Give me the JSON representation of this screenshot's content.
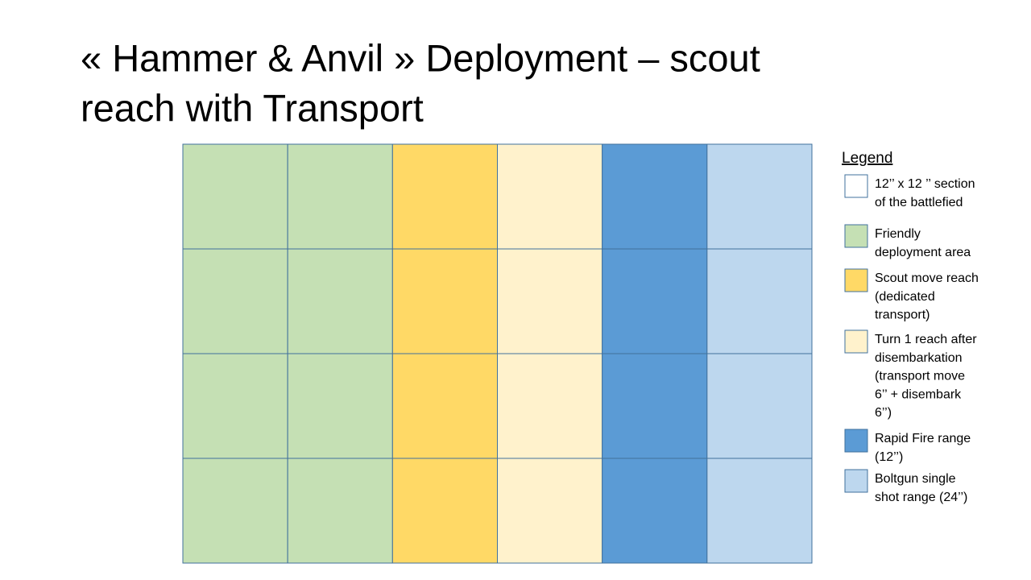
{
  "title": [
    "« Hammer & Anvil » Deployment – scout",
    "reach with Transport"
  ],
  "grid": {
    "rows": 4,
    "columns": [
      "#c5e0b4",
      "#c5e0b4",
      "#ffd966",
      "#fff2cc",
      "#5b9bd5",
      "#bdd7ee"
    ]
  },
  "legend": {
    "title": "Legend",
    "items": [
      {
        "color": "#ffffff",
        "label": [
          "12’’ x 12 ’’ section",
          "of the battlefied"
        ]
      },
      {
        "color": "#c5e0b4",
        "label": [
          "Friendly",
          "deployment area"
        ]
      },
      {
        "color": "#ffd966",
        "label": [
          "Scout move reach",
          "(dedicated",
          "transport)"
        ]
      },
      {
        "color": "#fff2cc",
        "label": [
          "Turn 1 reach after",
          "disembarkation",
          "(transport move",
          "6’’ + disembark",
          "6’’)"
        ]
      },
      {
        "color": "#5b9bd5",
        "label": [
          "Rapid Fire range",
          "(12’’)"
        ]
      },
      {
        "color": "#bdd7ee",
        "label": [
          "Boltgun single",
          "shot range (24’’)"
        ]
      }
    ]
  }
}
